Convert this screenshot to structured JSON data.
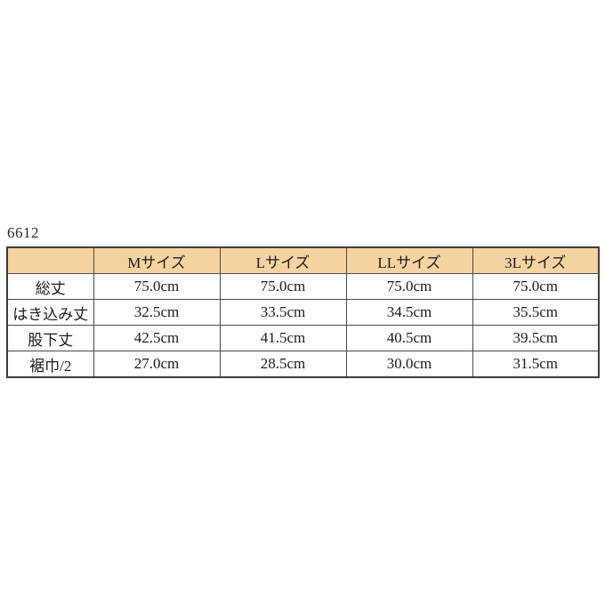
{
  "page": {
    "background_color": "#ffffff"
  },
  "model_number": "6612",
  "table": {
    "header_background_color": "#f5d3a1",
    "border_color": "#4a4a4a",
    "columns": [
      "",
      "Mサイズ",
      "Lサイズ",
      "LLサイズ",
      "3Lサイズ"
    ],
    "rows": [
      {
        "label": "総丈",
        "values": [
          "75.0cm",
          "75.0cm",
          "75.0cm",
          "75.0cm"
        ]
      },
      {
        "label": "はき込み丈",
        "values": [
          "32.5cm",
          "33.5cm",
          "34.5cm",
          "35.5cm"
        ]
      },
      {
        "label": "股下丈",
        "values": [
          "42.5cm",
          "41.5cm",
          "40.5cm",
          "39.5cm"
        ]
      },
      {
        "label": "裾巾/2",
        "values": [
          "27.0cm",
          "28.5cm",
          "30.0cm",
          "31.5cm"
        ]
      }
    ]
  }
}
